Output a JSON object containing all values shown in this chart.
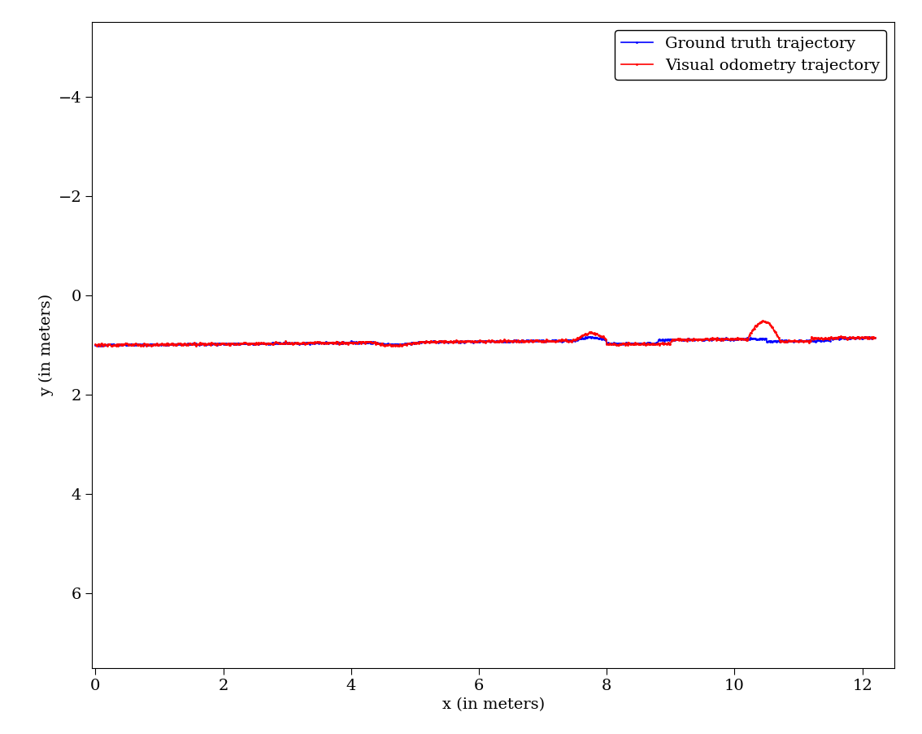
{
  "title": "",
  "xlabel": "x (in meters)",
  "ylabel": "y (in meters)",
  "xlim": [
    -0.05,
    12.5
  ],
  "ylim": [
    7.5,
    -5.5
  ],
  "xticks": [
    0,
    2,
    4,
    6,
    8,
    10,
    12
  ],
  "yticks": [
    -4,
    -2,
    0,
    2,
    4,
    6
  ],
  "gt_color": "#0000ff",
  "vo_color": "#ff0000",
  "gt_label": "Ground truth trajectory",
  "vo_label": "Visual odometry trajectory",
  "marker": ".",
  "markersize": 2,
  "linewidth": 1.2,
  "background_color": "#ffffff",
  "legend_loc": "upper right",
  "font_family": "DejaVu Serif",
  "font_size": 14,
  "tick_direction": "out"
}
